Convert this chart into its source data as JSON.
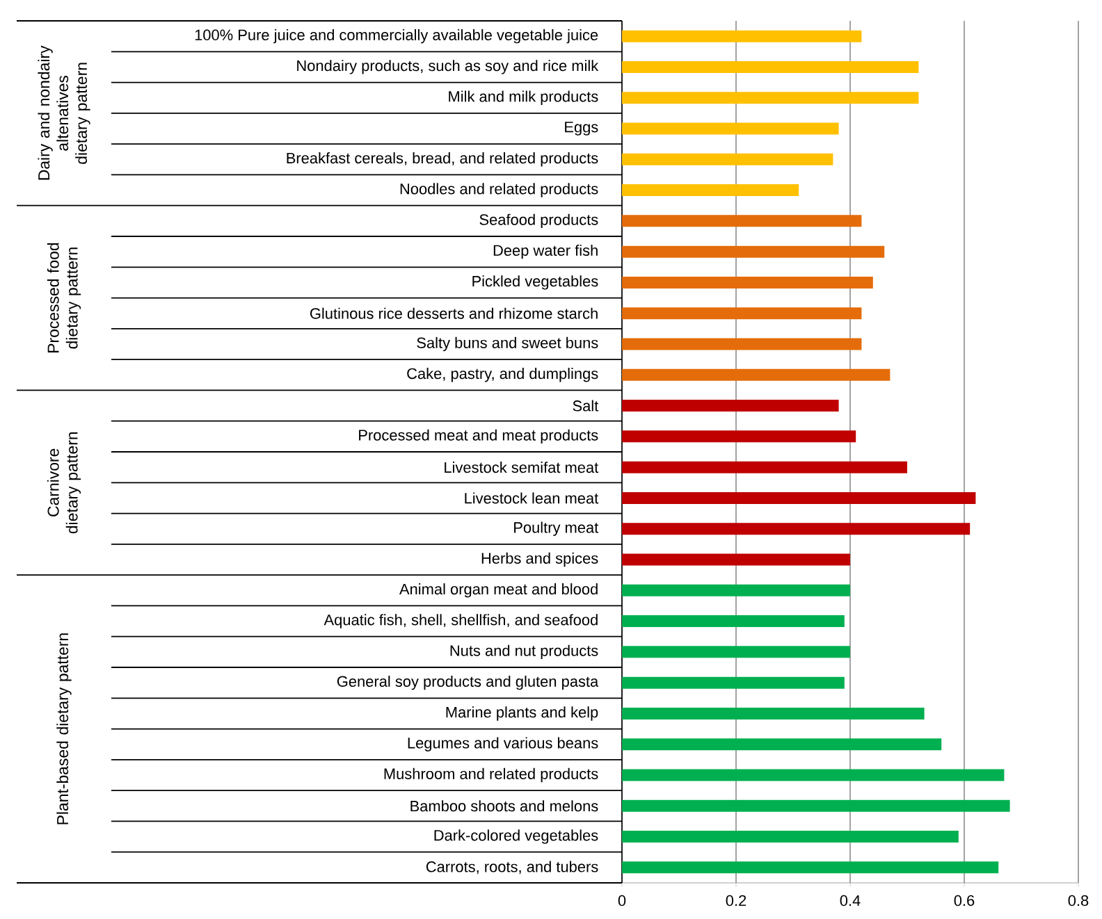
{
  "chart_data": {
    "type": "bar",
    "orientation": "horizontal",
    "categories": [
      "100% Pure juice and commercially available vegetable juice",
      "Nondairy products, such as soy and rice milk",
      "Milk and milk products",
      "Eggs",
      "Breakfast cereals, bread, and related products",
      "Noodles and related products",
      "Seafood products",
      "Deep water fish",
      "Pickled vegetables",
      "Glutinous rice desserts and rhizome starch",
      "Salty buns and sweet buns",
      "Cake, pastry, and dumplings",
      "Salt",
      "Processed meat and meat products",
      "Livestock semifat meat",
      "Livestock lean meat",
      "Poultry meat",
      "Herbs and spices",
      "Animal organ meat and blood",
      "Aquatic fish, shell, shellfish, and seafood",
      "Nuts and nut products",
      "General soy products and gluten pasta",
      "Marine plants and kelp",
      "Legumes and various beans",
      "Mushroom and related products",
      "Bamboo shoots and melons",
      "Dark-colored vegetables",
      "Carrots, roots, and tubers"
    ],
    "values": [
      0.42,
      0.52,
      0.52,
      0.38,
      0.37,
      0.31,
      0.42,
      0.46,
      0.44,
      0.42,
      0.42,
      0.47,
      0.38,
      0.41,
      0.5,
      0.62,
      0.61,
      0.4,
      0.4,
      0.39,
      0.4,
      0.39,
      0.53,
      0.56,
      0.67,
      0.68,
      0.59,
      0.66
    ],
    "colors": [
      "#ffc000",
      "#ffc000",
      "#ffc000",
      "#ffc000",
      "#ffc000",
      "#ffc000",
      "#e46c0a",
      "#e46c0a",
      "#e46c0a",
      "#e46c0a",
      "#e46c0a",
      "#e46c0a",
      "#c00000",
      "#c00000",
      "#c00000",
      "#c00000",
      "#c00000",
      "#c00000",
      "#00b050",
      "#00b050",
      "#00b050",
      "#00b050",
      "#00b050",
      "#00b050",
      "#00b050",
      "#00b050",
      "#00b050",
      "#00b050"
    ],
    "annotations": [
      "Dairy and nondairy altenatives dietary pattern",
      "Processed food dietary pattern",
      "Carnivore dietary pattern",
      "Plant-based dietary pattern"
    ],
    "xlim": [
      0,
      0.8
    ],
    "xticks": [
      0,
      0.2,
      0.4,
      0.6,
      0.8
    ],
    "grid": "x"
  }
}
